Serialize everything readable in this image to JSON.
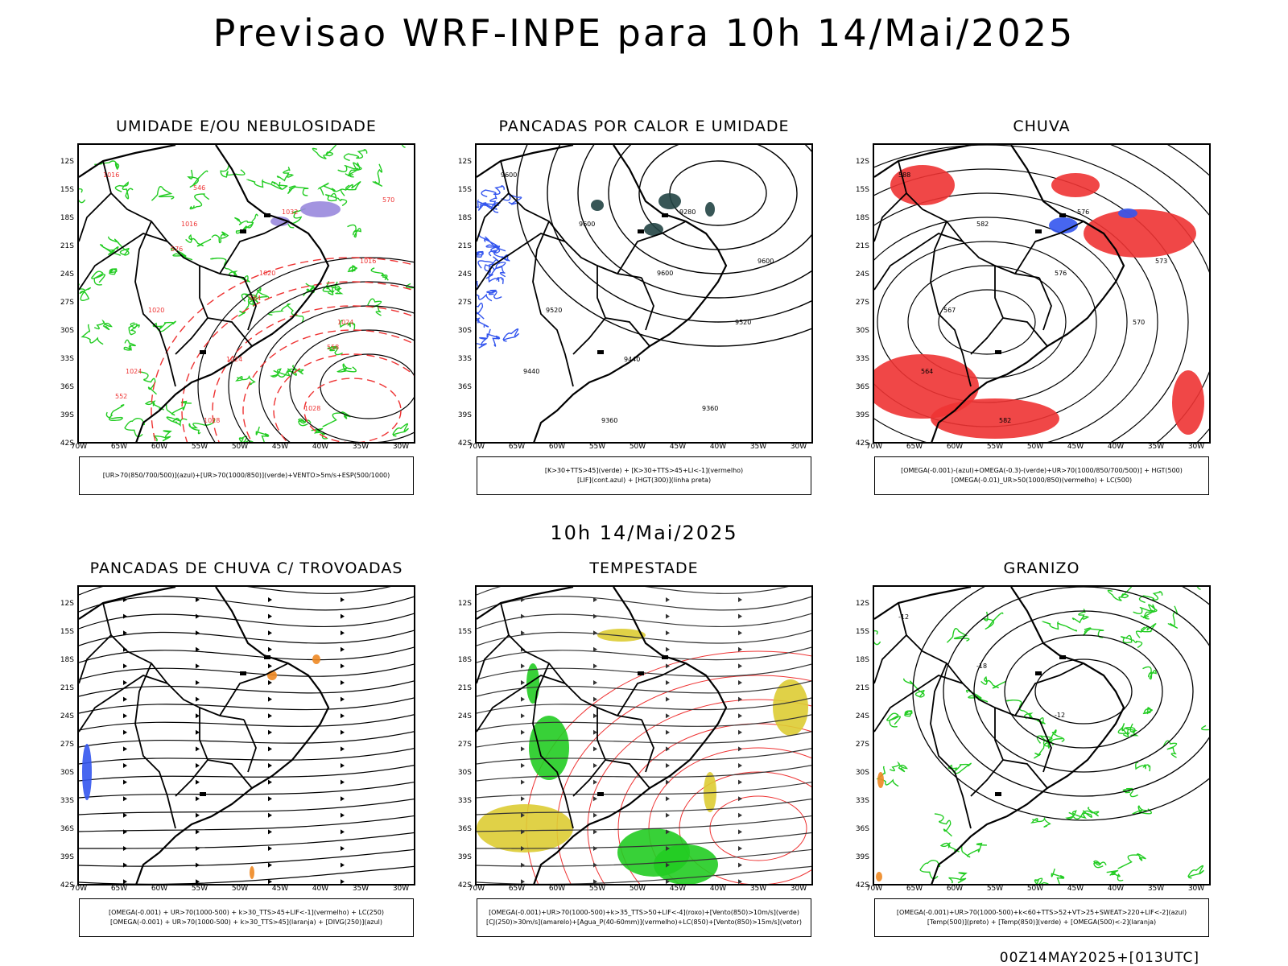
{
  "header": {
    "title": "Previsao WRF-INPE  para 10h 14/Mai/2025"
  },
  "middle": {
    "title": "10h 14/Mai/2025"
  },
  "footer": {
    "run": "00Z14MAY2025+[013UTC]"
  },
  "axes": {
    "lat": [
      "12S",
      "15S",
      "18S",
      "21S",
      "24S",
      "27S",
      "30S",
      "33S",
      "36S",
      "39S",
      "42S"
    ],
    "lon": [
      "70W",
      "65W",
      "60W",
      "55W",
      "50W",
      "45W",
      "40W",
      "35W",
      "30W"
    ]
  },
  "colors": {
    "green": "#22cc22",
    "red": "#ee3333",
    "blue": "#3355ee",
    "orange": "#ee8822",
    "yellow": "#ddcc33",
    "purple": "#9988dd",
    "teal": "#224444"
  },
  "panels": [
    {
      "title": "UMIDADE E/OU NEBULOSIDADE",
      "legend": [
        "[UR>70(850/700/500)](azul)+[UR>70(1000/850)](verde)+VENTO>5m/s+ESP(500/1000)"
      ],
      "labels": [
        "1016",
        "1016",
        "1020",
        "1024",
        "1024",
        "1028",
        "1032",
        "1016",
        "1020",
        "1024",
        "1028",
        "570",
        "576",
        "564",
        "558",
        "552",
        "546"
      ]
    },
    {
      "title": "PANCADAS POR CALOR E UMIDADE",
      "legend": [
        "[K>30+TTS>45](verde) + [K>30+TTS>45+LI<-1](vermelho)",
        "[LIF](cont.azul) + [HGT(300)](linha preta)"
      ],
      "labels": [
        "9600",
        "9600",
        "9600",
        "9520",
        "9440",
        "9360",
        "9280",
        "9600",
        "9520",
        "9440",
        "9360"
      ]
    },
    {
      "title": "CHUVA",
      "legend": [
        "[OMEGA(-0.001)-(azul)+OMEGA(-0.3)-(verde)+UR>70(1000/850/700/500)] + HGT(500)",
        "[OMEGA(-0.01)_UR>50(1000/850)(vermelho) + LC(500)"
      ],
      "labels": [
        "588",
        "582",
        "576",
        "570",
        "564",
        "582",
        "576",
        "573",
        "567"
      ]
    },
    {
      "title": "PANCADAS DE CHUVA C/ TROVOADAS",
      "legend": [
        "[OMEGA(-0.001) + UR>70(1000-500) + k>30_TTS>45+LIF<-1](vermelho) + LC(250)",
        "[OMEGA(-0.001) + UR>70(1000-500) + k>30_TTS>45](laranja) + [DIVG(250)](azul)"
      ],
      "labels": []
    },
    {
      "title": "TEMPESTADE",
      "legend": [
        "[OMEGA(-0.001)+UR>70(1000-500)+k>35_TTS>50+LIF<-4](roxo)+[Vento(850)>10m/s](verde)",
        "[CJ(250)>30m/s](amarelo)+[Agua_P(40-60mm)](vermelho)+LC(850)+[Vento(850)>15m/s](vetor)"
      ],
      "labels": []
    },
    {
      "title": "GRANIZO",
      "legend": [
        "[OMEGA(-0.001)+UR>70(1000-500)+k<60+TTS>52+VT>25+SWEAT>220+LIF<-2](azul)",
        "[Temp(500)](preto) + [Temp(850)](verde) + [OMEGA(500)<-2](laranja)"
      ],
      "labels": [
        "-12",
        "-18",
        "-12"
      ]
    }
  ]
}
